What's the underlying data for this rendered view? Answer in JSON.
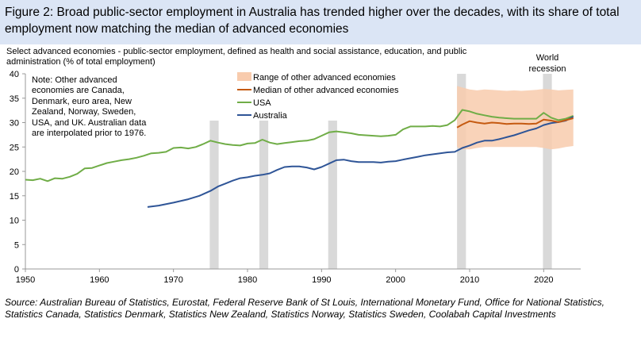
{
  "figure": {
    "title": "Figure 2: Broad public-sector employment in Australia has trended higher over the decades, with its share of total employment now matching the median of advanced economies",
    "subtitle": "Select advanced economies - public-sector employment, defined as health and social assistance, education, and public administration (% of total employment)",
    "note": "Note: Other advanced economies are Canada, Denmark, euro area, New Zealand, Norway, Sweden, USA, and UK.  Australian data are interpolated prior to 1976.",
    "source": "Source: Australian Bureau of Statistics, Eurostat, Federal Reserve Bank of St Louis, International Monetary Fund, Office for National Statistics, Statistics Canada, Statistics Denmark, Statistics New Zealand, Statistics Norway, Statistics Sweden, Coolabah Capital Investments"
  },
  "colors": {
    "usa": "#70ad47",
    "australia": "#2f5597",
    "median": "#c55a11",
    "range": "#f8cbad",
    "recession": "#d9d9d9",
    "axis": "#999999"
  },
  "chart_data": {
    "type": "line",
    "xlim": [
      1950,
      2025
    ],
    "ylim": [
      0,
      40
    ],
    "x_ticks": [
      1950,
      1960,
      1970,
      1980,
      1990,
      2000,
      2010,
      2020
    ],
    "y_ticks": [
      0,
      5,
      10,
      15,
      20,
      25,
      30,
      35,
      40
    ],
    "legend": {
      "position": "top-center",
      "entries": [
        "Range of other advanced economies",
        "Median of other advanced economies",
        "USA",
        "Australia"
      ]
    },
    "recession_bars": [
      [
        1974.9,
        1976.1
      ],
      [
        1981.6,
        1982.8
      ],
      [
        1990.9,
        1992.1
      ],
      [
        2008.3,
        2009.5
      ],
      [
        2019.9,
        2021.1
      ]
    ],
    "recession_label": "World recession",
    "series": [
      {
        "name": "USA",
        "x": [
          1950,
          1951,
          1952,
          1953,
          1954,
          1955,
          1956,
          1957,
          1958,
          1959,
          1960,
          1961,
          1962,
          1963,
          1964,
          1965,
          1966,
          1967,
          1968,
          1969,
          1970,
          1971,
          1972,
          1973,
          1974,
          1975,
          1976,
          1977,
          1978,
          1979,
          1980,
          1981,
          1982,
          1983,
          1984,
          1985,
          1986,
          1987,
          1988,
          1989,
          1990,
          1991,
          1992,
          1993,
          1994,
          1995,
          1996,
          1997,
          1998,
          1999,
          2000,
          2001,
          2002,
          2003,
          2004,
          2005,
          2006,
          2007,
          2008,
          2009,
          2010,
          2011,
          2012,
          2013,
          2014,
          2015,
          2016,
          2017,
          2018,
          2019,
          2020,
          2021,
          2022,
          2023,
          2024
        ],
        "values": [
          18.3,
          18.2,
          18.5,
          18.0,
          18.6,
          18.5,
          18.9,
          19.5,
          20.6,
          20.7,
          21.2,
          21.7,
          22.0,
          22.3,
          22.5,
          22.8,
          23.2,
          23.7,
          23.8,
          24.0,
          24.8,
          24.9,
          24.7,
          25.0,
          25.6,
          26.3,
          25.9,
          25.6,
          25.4,
          25.3,
          25.7,
          25.8,
          26.5,
          25.9,
          25.6,
          25.8,
          26.0,
          26.2,
          26.3,
          26.6,
          27.3,
          28.0,
          28.2,
          28.0,
          27.8,
          27.5,
          27.4,
          27.3,
          27.2,
          27.3,
          27.5,
          28.6,
          29.2,
          29.2,
          29.2,
          29.3,
          29.2,
          29.5,
          30.5,
          32.6,
          32.3,
          31.8,
          31.5,
          31.2,
          31.0,
          30.9,
          30.8,
          30.8,
          30.8,
          30.8,
          32.0,
          31.0,
          30.5,
          30.8,
          31.4
        ]
      },
      {
        "name": "Australia",
        "x": [
          1966.5,
          1968,
          1970,
          1972,
          1973.5,
          1975,
          1976,
          1977,
          1978,
          1979,
          1980,
          1981,
          1982,
          1983,
          1984,
          1985,
          1986,
          1987,
          1988,
          1989,
          1990,
          1991,
          1992,
          1993,
          1994,
          1995,
          1996,
          1997,
          1998,
          1999,
          2000,
          2001,
          2002,
          2003,
          2004,
          2005,
          2006,
          2007,
          2008,
          2009,
          2010,
          2011,
          2012,
          2013,
          2014,
          2015,
          2016,
          2017,
          2018,
          2019,
          2020,
          2021,
          2022,
          2023,
          2024
        ],
        "values": [
          12.7,
          13.0,
          13.6,
          14.3,
          15.0,
          16.0,
          16.9,
          17.5,
          18.1,
          18.6,
          18.8,
          19.1,
          19.3,
          19.6,
          20.3,
          20.9,
          21.0,
          21.0,
          20.8,
          20.4,
          20.9,
          21.6,
          22.3,
          22.4,
          22.1,
          21.9,
          21.9,
          21.9,
          21.8,
          22.0,
          22.1,
          22.4,
          22.7,
          23.0,
          23.3,
          23.5,
          23.7,
          23.9,
          24.0,
          24.8,
          25.3,
          25.9,
          26.3,
          26.3,
          26.6,
          27.0,
          27.4,
          27.9,
          28.4,
          28.8,
          29.5,
          29.9,
          30.1,
          30.4,
          31.2
        ]
      },
      {
        "name": "Median of other advanced economies",
        "x": [
          2008.3,
          2009,
          2010,
          2011,
          2012,
          2013,
          2014,
          2015,
          2016,
          2017,
          2018,
          2019,
          2020,
          2021,
          2022,
          2023,
          2024
        ],
        "values": [
          29.0,
          29.6,
          30.3,
          30.0,
          29.8,
          30.0,
          29.9,
          29.7,
          29.8,
          29.8,
          29.7,
          29.8,
          30.6,
          30.4,
          30.1,
          30.5,
          30.9
        ]
      }
    ],
    "range": {
      "name": "Range of other advanced economies",
      "x": [
        2008.3,
        2009,
        2010,
        2011,
        2012,
        2013,
        2014,
        2015,
        2016,
        2017,
        2018,
        2019,
        2020,
        2021,
        2022,
        2023,
        2024
      ],
      "low": [
        25.0,
        24.5,
        24.5,
        24.8,
        25.0,
        25.0,
        25.0,
        25.0,
        25.0,
        25.0,
        25.0,
        25.0,
        24.8,
        24.5,
        24.7,
        25.0,
        25.2
      ],
      "high": [
        37.5,
        37.2,
        36.8,
        36.6,
        36.8,
        36.7,
        36.6,
        36.5,
        36.6,
        36.5,
        36.6,
        36.7,
        36.9,
        36.8,
        36.6,
        36.7,
        36.8
      ]
    }
  }
}
